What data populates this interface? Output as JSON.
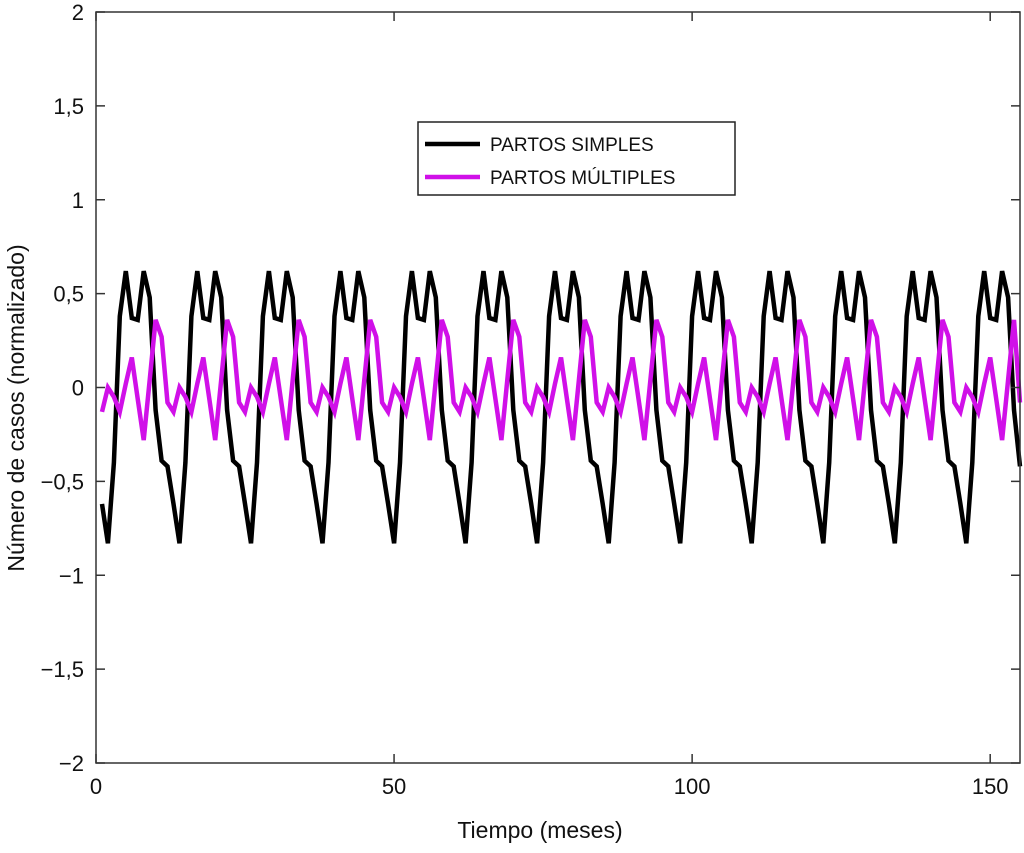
{
  "chart_data": {
    "type": "line",
    "title": "",
    "xlabel": "Tiempo (meses)",
    "ylabel": "Número de casos (normalizado)",
    "xlim": [
      0,
      155
    ],
    "ylim": [
      -2,
      2
    ],
    "xticks": [
      0,
      50,
      100,
      150
    ],
    "xtick_labels": [
      "0",
      "50",
      "100",
      "150"
    ],
    "yticks": [
      -2,
      -1.5,
      -1,
      -0.5,
      0,
      0.5,
      1,
      1.5,
      2
    ],
    "ytick_labels": [
      "−2",
      "−1,5",
      "−1",
      "−0,5",
      "0",
      "0,5",
      "1",
      "1,5",
      "2"
    ],
    "grid": false,
    "legend_position": "top-center",
    "x_start": 1,
    "x_step": 1,
    "series": [
      {
        "name": "PARTOS SIMPLES",
        "color": "#000000",
        "values": [
          -0.62,
          -0.83,
          -0.4,
          0.38,
          0.62,
          0.37,
          0.36,
          0.62,
          0.48,
          -0.12,
          -0.39,
          -0.42,
          -0.62,
          -0.83,
          -0.4,
          0.38,
          0.62,
          0.37,
          0.36,
          0.62,
          0.48,
          -0.12,
          -0.39,
          -0.42,
          -0.62,
          -0.83,
          -0.4,
          0.38,
          0.62,
          0.37,
          0.36,
          0.62,
          0.48,
          -0.12,
          -0.39,
          -0.42,
          -0.62,
          -0.83,
          -0.4,
          0.38,
          0.62,
          0.37,
          0.36,
          0.62,
          0.48,
          -0.12,
          -0.39,
          -0.42,
          -0.62,
          -0.83,
          -0.4,
          0.38,
          0.62,
          0.37,
          0.36,
          0.62,
          0.48,
          -0.12,
          -0.39,
          -0.42,
          -0.62,
          -0.83,
          -0.4,
          0.38,
          0.62,
          0.37,
          0.36,
          0.62,
          0.48,
          -0.12,
          -0.39,
          -0.42,
          -0.62,
          -0.83,
          -0.4,
          0.38,
          0.62,
          0.37,
          0.36,
          0.62,
          0.48,
          -0.12,
          -0.39,
          -0.42,
          -0.62,
          -0.83,
          -0.4,
          0.38,
          0.62,
          0.37,
          0.36,
          0.62,
          0.48,
          -0.12,
          -0.39,
          -0.42,
          -0.62,
          -0.83,
          -0.4,
          0.38,
          0.62,
          0.37,
          0.36,
          0.62,
          0.48,
          -0.12,
          -0.39,
          -0.42,
          -0.62,
          -0.83,
          -0.4,
          0.38,
          0.62,
          0.37,
          0.36,
          0.62,
          0.48,
          -0.12,
          -0.39,
          -0.42,
          -0.62,
          -0.83,
          -0.4,
          0.38,
          0.62,
          0.37,
          0.36,
          0.62,
          0.48,
          -0.12,
          -0.39,
          -0.42,
          -0.62,
          -0.83,
          -0.4,
          0.38,
          0.62,
          0.37,
          0.36,
          0.62,
          0.48,
          -0.12,
          -0.39,
          -0.42,
          -0.62,
          -0.83,
          -0.4,
          0.38,
          0.62,
          0.37,
          0.36,
          0.62,
          0.48,
          -0.12,
          -0.42
        ]
      },
      {
        "name": "PARTOS MÚLTIPLES",
        "color": "#d010e8",
        "values": [
          -0.13,
          0.0,
          -0.05,
          -0.13,
          0.02,
          0.16,
          -0.06,
          -0.28,
          0.04,
          0.36,
          0.27,
          -0.08,
          -0.13,
          0.0,
          -0.05,
          -0.13,
          0.02,
          0.16,
          -0.06,
          -0.28,
          0.04,
          0.36,
          0.27,
          -0.08,
          -0.13,
          0.0,
          -0.05,
          -0.13,
          0.02,
          0.16,
          -0.06,
          -0.28,
          0.04,
          0.36,
          0.27,
          -0.08,
          -0.13,
          0.0,
          -0.05,
          -0.13,
          0.02,
          0.16,
          -0.06,
          -0.28,
          0.04,
          0.36,
          0.27,
          -0.08,
          -0.13,
          0.0,
          -0.05,
          -0.13,
          0.02,
          0.16,
          -0.06,
          -0.28,
          0.04,
          0.36,
          0.27,
          -0.08,
          -0.13,
          0.0,
          -0.05,
          -0.13,
          0.02,
          0.16,
          -0.06,
          -0.28,
          0.04,
          0.36,
          0.27,
          -0.08,
          -0.13,
          0.0,
          -0.05,
          -0.13,
          0.02,
          0.16,
          -0.06,
          -0.28,
          0.04,
          0.36,
          0.27,
          -0.08,
          -0.13,
          0.0,
          -0.05,
          -0.13,
          0.02,
          0.16,
          -0.06,
          -0.28,
          0.04,
          0.36,
          0.27,
          -0.08,
          -0.13,
          0.0,
          -0.05,
          -0.13,
          0.02,
          0.16,
          -0.06,
          -0.28,
          0.04,
          0.36,
          0.27,
          -0.08,
          -0.13,
          0.0,
          -0.05,
          -0.13,
          0.02,
          0.16,
          -0.06,
          -0.28,
          0.04,
          0.36,
          0.27,
          -0.08,
          -0.13,
          0.0,
          -0.05,
          -0.13,
          0.02,
          0.16,
          -0.06,
          -0.28,
          0.04,
          0.36,
          0.27,
          -0.08,
          -0.13,
          0.0,
          -0.05,
          -0.13,
          0.02,
          0.16,
          -0.06,
          -0.28,
          0.04,
          0.36,
          0.27,
          -0.08,
          -0.13,
          0.0,
          -0.05,
          -0.13,
          0.02,
          0.16,
          -0.06,
          -0.28,
          0.04,
          0.36,
          -0.08
        ]
      }
    ]
  }
}
